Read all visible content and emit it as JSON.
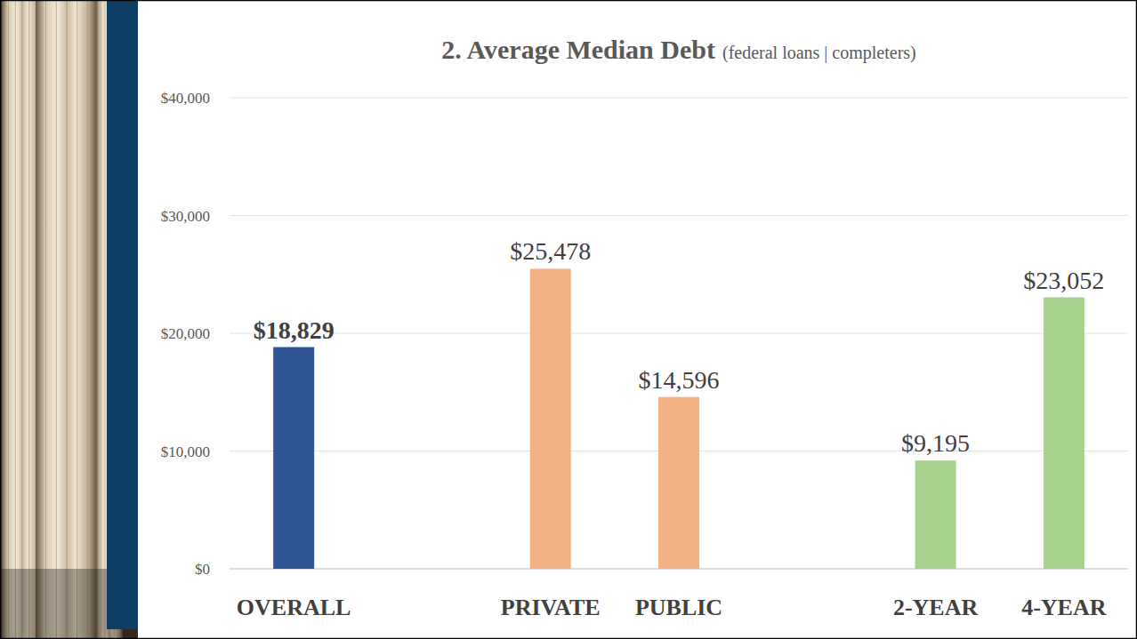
{
  "chart_data": {
    "type": "bar",
    "title": "2. Average Median Debt",
    "subtitle": "(federal loans | completers)",
    "categories": [
      "OVERALL",
      null,
      "PRIVATE",
      "PUBLIC",
      null,
      "2-YEAR",
      "4-YEAR"
    ],
    "values": [
      18829,
      null,
      25478,
      14596,
      null,
      9195,
      23052
    ],
    "value_labels": [
      "$18,829",
      null,
      "$25,478",
      "$14,596",
      null,
      "$9,195",
      "$23,052"
    ],
    "colors": [
      "#2f5597",
      null,
      "#f4b183",
      "#f4b183",
      null,
      "#a9d18e",
      "#a9d18e"
    ],
    "ylim": [
      0,
      40000
    ],
    "yticks": [
      {
        "value": 0,
        "label": "$0"
      },
      {
        "value": 10000,
        "label": "$10,000"
      },
      {
        "value": 20000,
        "label": "$20,000"
      },
      {
        "value": 30000,
        "label": "$30,000"
      },
      {
        "value": 40000,
        "label": "$40,000"
      }
    ],
    "grid": true,
    "data_labels": true
  }
}
